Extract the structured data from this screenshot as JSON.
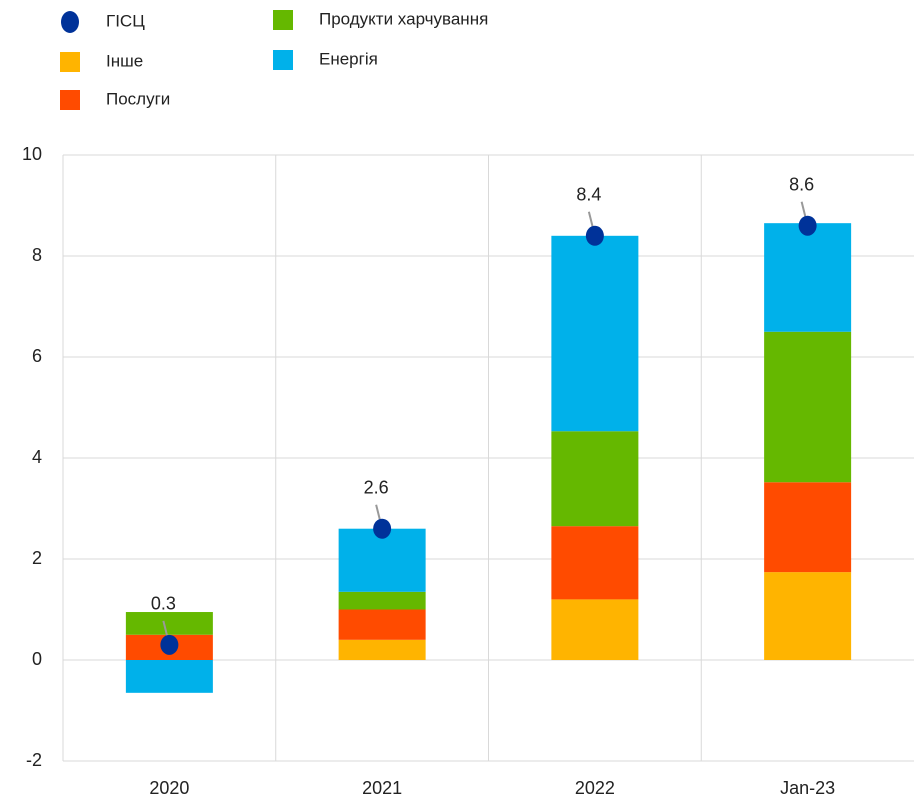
{
  "chart_data": {
    "type": "stacked_bar",
    "categories": [
      "2020",
      "2021",
      "2022",
      "Jan-23"
    ],
    "series": [
      {
        "name": "Інше",
        "color": "#ffb400",
        "values": [
          0,
          0.4,
          1.2,
          1.74
        ]
      },
      {
        "name": "Послуги",
        "color": "#ff4b00",
        "values": [
          0.5,
          0.6,
          1.45,
          1.78
        ]
      },
      {
        "name": "Продукти харчування",
        "color": "#65b800",
        "values": [
          0.45,
          0.35,
          1.88,
          2.98
        ]
      },
      {
        "name": "Енергія",
        "color": "#00b1ea",
        "values": [
          -0.65,
          1.25,
          3.87,
          2.15
        ]
      }
    ],
    "hicp": {
      "name": "ГІСЦ",
      "color": "#003299",
      "values": [
        0.3,
        2.6,
        8.4,
        8.6
      ]
    },
    "ylim": [
      -2,
      10
    ],
    "yticks": [
      -2,
      0,
      2,
      4,
      6,
      8,
      10
    ],
    "grid": true
  }
}
